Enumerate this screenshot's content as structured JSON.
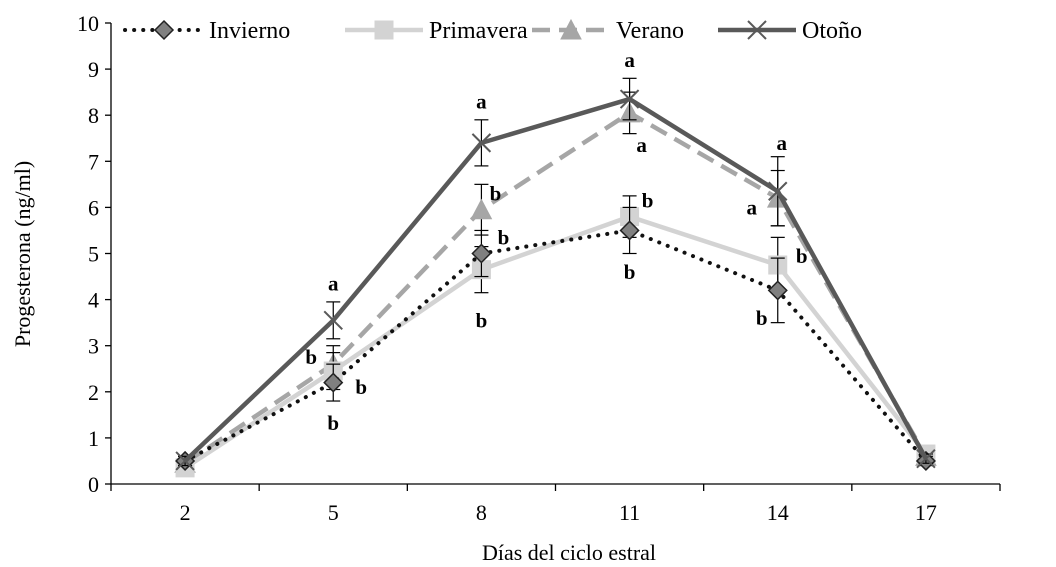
{
  "chart_data": {
    "type": "line",
    "xlabel": "Días del ciclo estral",
    "ylabel": "Progesterona (ng/ml)",
    "x": [
      2,
      5,
      8,
      11,
      14,
      17
    ],
    "x_ticks": [
      "2",
      "5",
      "8",
      "11",
      "14",
      "17"
    ],
    "ylim": [
      0,
      10
    ],
    "y_ticks": [
      "0",
      "1",
      "2",
      "3",
      "4",
      "5",
      "6",
      "7",
      "8",
      "9",
      "10"
    ],
    "grid": false,
    "legend_position": "top",
    "series": [
      {
        "name": "Invierno",
        "values": [
          0.5,
          2.2,
          5.0,
          5.5,
          4.2,
          0.5
        ],
        "error": [
          0.1,
          0.4,
          0.5,
          0.5,
          0.7,
          0.1
        ],
        "color": "#111111",
        "line_style": "dotted",
        "marker": "diamond",
        "marker_fill": "#808080"
      },
      {
        "name": "Primavera",
        "values": [
          0.35,
          2.45,
          4.65,
          5.8,
          4.75,
          0.65
        ],
        "error": [
          0.1,
          0.4,
          0.5,
          0.45,
          0.6,
          0.1
        ],
        "color": "#d3d3d3",
        "line_style": "solid",
        "marker": "square",
        "marker_fill": "#d3d3d3"
      },
      {
        "name": "Verano",
        "values": [
          0.45,
          2.6,
          5.95,
          8.05,
          6.2,
          0.6
        ],
        "error": [
          0.1,
          0.4,
          0.55,
          0.45,
          0.6,
          0.1
        ],
        "color": "#a6a6a6",
        "line_style": "dashed",
        "marker": "triangle",
        "marker_fill": "#a6a6a6"
      },
      {
        "name": "Otoño",
        "values": [
          0.5,
          3.55,
          7.4,
          8.35,
          6.35,
          0.55
        ],
        "error": [
          0.1,
          0.4,
          0.5,
          0.45,
          0.75,
          0.1
        ],
        "color": "#595959",
        "line_style": "solid",
        "marker": "x",
        "marker_fill": "none"
      }
    ],
    "annotations": [
      {
        "text": "a",
        "x": 5,
        "y": 4.35
      },
      {
        "text": "b",
        "x": 5,
        "y": 2.75
      },
      {
        "text": "b",
        "x": 5,
        "y": 2.1
      },
      {
        "text": "b",
        "x": 5,
        "y": 1.32
      },
      {
        "text": "a",
        "x": 8,
        "y": 8.3
      },
      {
        "text": "b",
        "x": 8,
        "y": 6.3
      },
      {
        "text": "b",
        "x": 8,
        "y": 5.35
      },
      {
        "text": "b",
        "x": 8,
        "y": 3.55
      },
      {
        "text": "a",
        "x": 11,
        "y": 9.2
      },
      {
        "text": "a",
        "x": 11,
        "y": 7.35
      },
      {
        "text": "b",
        "x": 11,
        "y": 6.15
      },
      {
        "text": "b",
        "x": 11,
        "y": 4.6
      },
      {
        "text": "a",
        "x": 14,
        "y": 7.4
      },
      {
        "text": "a",
        "x": 14,
        "y": 6.0
      },
      {
        "text": "b",
        "x": 14,
        "y": 4.95
      },
      {
        "text": "b",
        "x": 14,
        "y": 3.6
      }
    ]
  }
}
